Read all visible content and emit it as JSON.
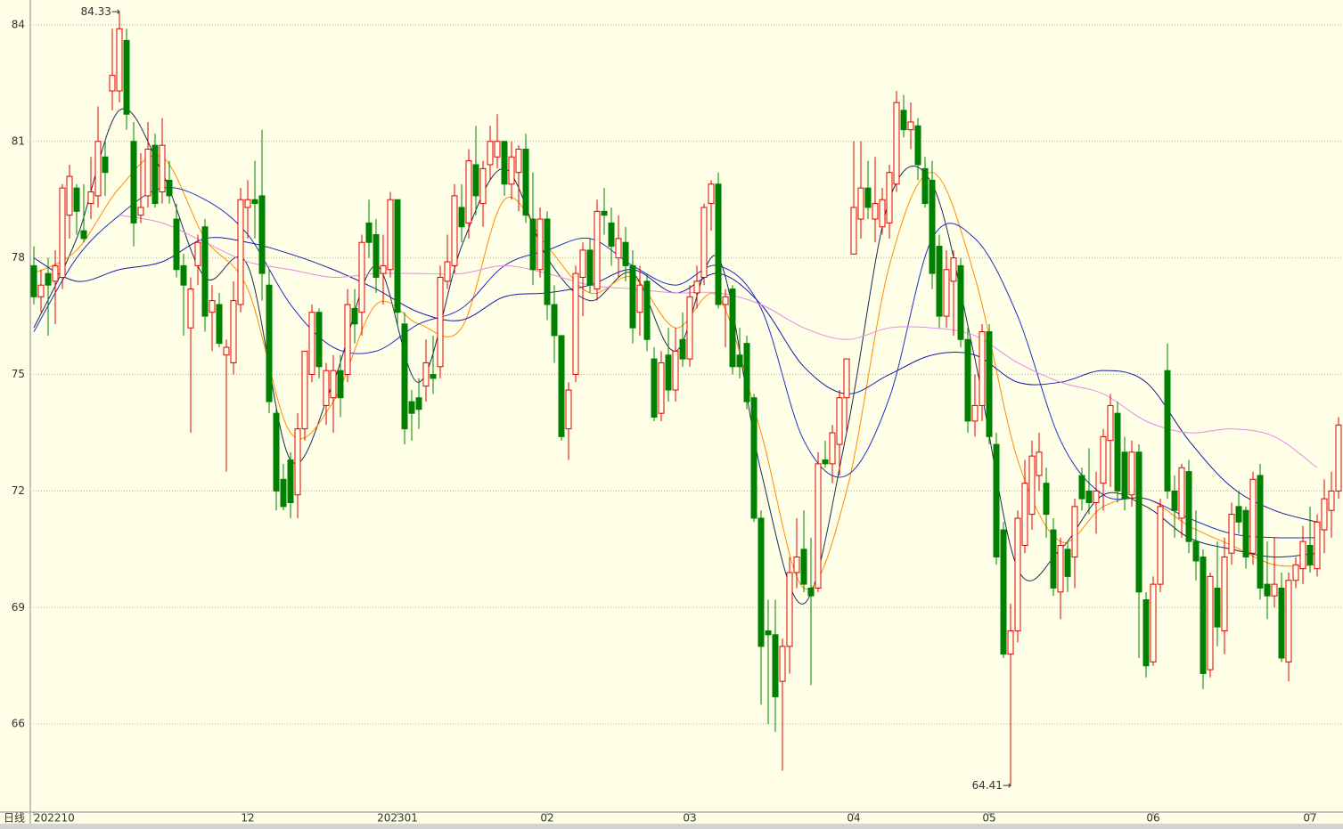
{
  "chart_data": {
    "type": "candlestick",
    "period_label": "日线",
    "up_color": "#e00000",
    "down_color": "#008000",
    "ylim": [
      63.78,
      84.64
    ],
    "yticks": [
      66,
      69,
      72,
      75,
      78,
      81,
      84
    ],
    "grid": true,
    "categories": [
      "202210",
      null,
      null,
      null,
      null,
      null,
      null,
      null,
      null,
      null,
      null,
      null,
      null,
      null,
      null,
      null,
      null,
      null,
      null,
      null,
      null,
      null,
      null,
      null,
      null,
      null,
      null,
      null,
      null,
      null,
      "12",
      null,
      null,
      null,
      null,
      null,
      null,
      null,
      null,
      null,
      null,
      null,
      null,
      null,
      null,
      null,
      null,
      null,
      null,
      null,
      null,
      "202301",
      null,
      null,
      null,
      null,
      null,
      null,
      null,
      null,
      null,
      null,
      null,
      null,
      null,
      null,
      null,
      null,
      null,
      null,
      null,
      null,
      "02",
      null,
      null,
      null,
      null,
      null,
      null,
      null,
      null,
      null,
      null,
      null,
      null,
      null,
      null,
      null,
      null,
      null,
      null,
      null,
      "03",
      null,
      null,
      null,
      null,
      null,
      null,
      null,
      null,
      null,
      null,
      null,
      null,
      null,
      null,
      null,
      null,
      null,
      null,
      null,
      null,
      null,
      null,
      "04",
      null,
      null,
      null,
      null,
      null,
      null,
      null,
      null,
      null,
      null,
      null,
      null,
      null,
      null,
      null,
      null,
      null,
      null,
      "05",
      null,
      null,
      null,
      null,
      null,
      null,
      null,
      null,
      null,
      null,
      null,
      null,
      null,
      null,
      null,
      null,
      null,
      null,
      null,
      null,
      null,
      null,
      "06",
      null,
      null,
      null,
      null,
      null,
      null,
      null,
      null,
      null,
      null,
      null,
      null,
      null,
      null,
      null,
      null,
      null,
      null,
      null,
      null,
      null,
      "07",
      null,
      null,
      null,
      null
    ],
    "candles": [
      [
        77.8,
        78.3,
        76.8,
        77.0
      ],
      [
        77.0,
        77.7,
        76.6,
        77.3
      ],
      [
        77.6,
        78.0,
        76.0,
        77.3
      ],
      [
        77.4,
        78.2,
        76.3,
        77.8
      ],
      [
        77.5,
        79.9,
        77.2,
        79.8
      ],
      [
        79.1,
        80.4,
        78.5,
        80.1
      ],
      [
        79.8,
        79.9,
        78.6,
        79.2
      ],
      [
        78.7,
        79.9,
        78.4,
        78.5
      ],
      [
        79.4,
        80.6,
        79.0,
        79.7
      ],
      [
        79.6,
        81.9,
        79.3,
        81.0
      ],
      [
        80.6,
        81.0,
        79.6,
        80.2
      ],
      [
        82.3,
        83.9,
        81.8,
        82.7
      ],
      [
        82.3,
        84.33,
        82.0,
        83.9
      ],
      [
        83.6,
        83.9,
        81.3,
        81.7
      ],
      [
        81.0,
        81.5,
        78.3,
        78.9
      ],
      [
        79.1,
        80.7,
        78.9,
        79.3
      ],
      [
        79.6,
        81.5,
        79.3,
        80.8
      ],
      [
        80.9,
        81.2,
        79.3,
        79.4
      ],
      [
        79.7,
        81.6,
        79.4,
        80.9
      ],
      [
        80.0,
        80.5,
        79.4,
        79.6
      ],
      [
        79.0,
        79.4,
        77.5,
        77.7
      ],
      [
        77.8,
        78.1,
        76.0,
        77.3
      ],
      [
        76.2,
        77.5,
        73.5,
        77.2
      ],
      [
        77.8,
        78.6,
        77.3,
        78.4
      ],
      [
        78.8,
        79.0,
        76.1,
        76.5
      ],
      [
        76.6,
        77.3,
        75.6,
        76.9
      ],
      [
        76.8,
        77.1,
        75.7,
        75.8
      ],
      [
        75.5,
        75.9,
        72.5,
        75.7
      ],
      [
        75.3,
        77.4,
        75.0,
        76.9
      ],
      [
        76.8,
        79.8,
        76.6,
        79.5
      ],
      [
        79.3,
        80.0,
        78.5,
        79.5
      ],
      [
        79.5,
        80.5,
        78.5,
        79.4
      ],
      [
        79.6,
        81.3,
        76.9,
        77.6
      ],
      [
        77.3,
        77.7,
        74.0,
        74.3
      ],
      [
        74.0,
        74.2,
        71.5,
        72.0
      ],
      [
        72.3,
        72.7,
        71.5,
        71.6
      ],
      [
        72.8,
        73.0,
        71.3,
        71.7
      ],
      [
        71.9,
        74.0,
        71.3,
        73.6
      ],
      [
        73.6,
        75.6,
        73.3,
        75.6
      ],
      [
        75.0,
        76.8,
        74.8,
        76.6
      ],
      [
        76.6,
        76.7,
        74.9,
        75.2
      ],
      [
        74.2,
        75.3,
        73.7,
        75.1
      ],
      [
        74.4,
        75.5,
        73.5,
        75.1
      ],
      [
        75.1,
        75.5,
        73.9,
        74.4
      ],
      [
        75.0,
        77.2,
        74.8,
        76.8
      ],
      [
        76.7,
        77.2,
        75.8,
        76.3
      ],
      [
        76.6,
        78.6,
        76.0,
        78.4
      ],
      [
        78.9,
        79.5,
        78.0,
        78.4
      ],
      [
        78.6,
        79.0,
        77.1,
        77.5
      ],
      [
        77.6,
        78.6,
        76.8,
        77.8
      ],
      [
        77.7,
        79.7,
        77.5,
        79.5
      ],
      [
        79.5,
        79.5,
        76.3,
        76.6
      ],
      [
        76.3,
        76.6,
        73.2,
        73.6
      ],
      [
        74.3,
        74.6,
        73.3,
        74.0
      ],
      [
        74.4,
        74.9,
        73.6,
        74.1
      ],
      [
        74.7,
        75.9,
        74.3,
        75.3
      ],
      [
        75.0,
        76.0,
        74.5,
        74.9
      ],
      [
        75.2,
        77.8,
        74.9,
        77.5
      ],
      [
        77.4,
        78.6,
        77.2,
        77.9
      ],
      [
        77.8,
        79.9,
        77.6,
        79.6
      ],
      [
        79.3,
        79.9,
        78.4,
        78.8
      ],
      [
        78.9,
        80.8,
        78.5,
        80.5
      ],
      [
        80.4,
        81.4,
        79.1,
        79.6
      ],
      [
        79.4,
        80.5,
        78.8,
        80.3
      ],
      [
        80.4,
        81.4,
        80.0,
        81.0
      ],
      [
        80.6,
        81.7,
        80.3,
        81.0
      ],
      [
        81.0,
        81.0,
        79.6,
        79.9
      ],
      [
        79.9,
        81.0,
        79.5,
        80.6
      ],
      [
        80.2,
        80.9,
        79.2,
        80.8
      ],
      [
        80.8,
        81.2,
        78.9,
        79.1
      ],
      [
        79.0,
        80.2,
        77.3,
        77.7
      ],
      [
        77.7,
        79.3,
        77.5,
        79.0
      ],
      [
        79.0,
        79.2,
        76.4,
        76.8
      ],
      [
        76.8,
        77.3,
        75.3,
        76.0
      ],
      [
        76.0,
        76.0,
        73.3,
        73.4
      ],
      [
        73.6,
        74.8,
        72.8,
        74.6
      ],
      [
        75.0,
        77.8,
        74.8,
        77.6
      ],
      [
        77.5,
        78.4,
        76.5,
        78.2
      ],
      [
        78.2,
        78.5,
        77.1,
        77.3
      ],
      [
        77.2,
        79.5,
        76.9,
        79.2
      ],
      [
        79.2,
        79.8,
        78.6,
        79.1
      ],
      [
        78.9,
        79.3,
        77.8,
        78.3
      ],
      [
        78.0,
        79.1,
        77.5,
        78.5
      ],
      [
        78.4,
        78.8,
        77.4,
        77.8
      ],
      [
        77.8,
        78.2,
        75.8,
        76.2
      ],
      [
        76.6,
        77.8,
        76.0,
        77.3
      ],
      [
        77.4,
        77.6,
        75.6,
        75.9
      ],
      [
        75.4,
        75.7,
        73.8,
        73.9
      ],
      [
        74.0,
        75.6,
        73.8,
        75.3
      ],
      [
        75.5,
        76.2,
        74.3,
        74.6
      ],
      [
        74.6,
        76.2,
        74.3,
        75.6
      ],
      [
        75.9,
        76.6,
        75.2,
        75.4
      ],
      [
        75.4,
        77.3,
        75.2,
        77.0
      ],
      [
        77.1,
        77.8,
        76.7,
        77.4
      ],
      [
        77.5,
        79.4,
        77.3,
        79.3
      ],
      [
        79.4,
        80.0,
        78.7,
        79.9
      ],
      [
        79.9,
        80.2,
        76.7,
        76.8
      ],
      [
        76.8,
        77.2,
        75.7,
        77.0
      ],
      [
        77.2,
        77.3,
        75.0,
        75.2
      ],
      [
        75.5,
        76.2,
        74.9,
        75.2
      ],
      [
        75.8,
        76.0,
        74.1,
        74.3
      ],
      [
        74.4,
        74.5,
        71.2,
        71.3
      ],
      [
        71.3,
        71.5,
        66.5,
        68.0
      ],
      [
        68.4,
        69.2,
        66.0,
        68.3
      ],
      [
        68.3,
        69.2,
        65.8,
        66.7
      ],
      [
        67.1,
        68.2,
        64.8,
        68.0
      ],
      [
        68.0,
        70.3,
        67.3,
        69.9
      ],
      [
        69.9,
        71.3,
        69.5,
        70.3
      ],
      [
        70.5,
        71.5,
        69.4,
        69.6
      ],
      [
        69.5,
        70.8,
        67.0,
        69.3
      ],
      [
        69.5,
        73.0,
        69.4,
        72.7
      ],
      [
        72.8,
        73.3,
        72.6,
        72.7
      ],
      [
        72.7,
        73.7,
        72.2,
        73.5
      ],
      [
        73.2,
        74.6,
        72.4,
        74.4
      ],
      [
        74.4,
        75.4,
        73.5,
        75.4
      ],
      [
        78.1,
        81.0,
        78.1,
        79.3
      ],
      [
        79.0,
        81.0,
        78.5,
        79.8
      ],
      [
        79.8,
        80.5,
        79.0,
        79.3
      ],
      [
        79.0,
        80.6,
        78.4,
        79.4
      ],
      [
        78.8,
        79.8,
        78.6,
        79.5
      ],
      [
        78.9,
        80.4,
        78.5,
        80.2
      ],
      [
        79.9,
        82.3,
        79.7,
        82.0
      ],
      [
        81.8,
        82.2,
        81.1,
        81.3
      ],
      [
        81.3,
        82.0,
        80.8,
        81.5
      ],
      [
        81.4,
        81.6,
        80.0,
        80.4
      ],
      [
        80.3,
        80.6,
        79.3,
        79.4
      ],
      [
        80.0,
        80.5,
        77.2,
        77.6
      ],
      [
        78.3,
        78.6,
        76.2,
        76.5
      ],
      [
        76.5,
        78.2,
        76.2,
        77.7
      ],
      [
        77.4,
        78.2,
        76.0,
        78.0
      ],
      [
        77.8,
        78.0,
        75.7,
        75.9
      ],
      [
        75.9,
        76.2,
        73.5,
        73.8
      ],
      [
        73.8,
        75.0,
        73.4,
        74.2
      ],
      [
        74.2,
        76.3,
        73.8,
        76.1
      ],
      [
        76.1,
        76.3,
        73.2,
        73.4
      ],
      [
        73.2,
        73.5,
        70.1,
        70.3
      ],
      [
        71.0,
        71.2,
        67.7,
        67.8
      ],
      [
        67.8,
        69.1,
        64.41,
        68.4
      ],
      [
        68.4,
        71.5,
        68.1,
        71.3
      ],
      [
        70.6,
        72.8,
        70.4,
        72.2
      ],
      [
        71.4,
        73.3,
        71.0,
        72.9
      ],
      [
        72.4,
        73.5,
        72.0,
        73.0
      ],
      [
        72.2,
        72.6,
        70.8,
        71.4
      ],
      [
        71.0,
        71.3,
        69.3,
        69.5
      ],
      [
        69.4,
        70.8,
        68.7,
        70.6
      ],
      [
        70.5,
        70.7,
        69.4,
        69.8
      ],
      [
        70.3,
        71.8,
        69.5,
        71.6
      ],
      [
        72.4,
        72.6,
        71.5,
        71.8
      ],
      [
        72.0,
        73.1,
        71.4,
        71.7
      ],
      [
        71.7,
        72.5,
        70.9,
        72.0
      ],
      [
        72.2,
        73.6,
        71.5,
        73.4
      ],
      [
        73.3,
        74.5,
        72.1,
        74.2
      ],
      [
        74.0,
        74.3,
        71.7,
        72.0
      ],
      [
        73.0,
        73.4,
        71.5,
        71.8
      ],
      [
        71.9,
        73.3,
        71.6,
        73.0
      ],
      [
        73.0,
        73.2,
        67.7,
        69.4
      ],
      [
        69.2,
        69.4,
        67.2,
        67.5
      ],
      [
        67.6,
        69.8,
        67.5,
        69.6
      ],
      [
        69.6,
        71.8,
        69.4,
        71.6
      ],
      [
        75.1,
        75.8,
        71.8,
        72.0
      ],
      [
        72.0,
        72.4,
        70.8,
        71.5
      ],
      [
        71.3,
        72.7,
        70.8,
        72.6
      ],
      [
        72.5,
        72.8,
        70.4,
        70.7
      ],
      [
        70.7,
        71.5,
        69.7,
        70.2
      ],
      [
        70.3,
        70.5,
        66.9,
        67.3
      ],
      [
        67.4,
        69.9,
        67.2,
        69.8
      ],
      [
        69.5,
        70.7,
        68.0,
        68.5
      ],
      [
        68.4,
        70.8,
        67.8,
        70.3
      ],
      [
        70.4,
        71.7,
        70.1,
        71.4
      ],
      [
        71.6,
        72.0,
        70.9,
        71.2
      ],
      [
        71.5,
        71.6,
        70.0,
        70.3
      ],
      [
        70.4,
        72.5,
        70.1,
        72.3
      ],
      [
        72.4,
        72.7,
        69.2,
        69.5
      ],
      [
        69.6,
        70.7,
        68.7,
        69.3
      ],
      [
        69.3,
        70.8,
        69.0,
        69.6
      ],
      [
        69.5,
        69.9,
        67.6,
        67.7
      ],
      [
        67.6,
        69.9,
        67.1,
        69.7
      ],
      [
        69.7,
        70.3,
        69.5,
        70.1
      ],
      [
        70.0,
        71.1,
        69.6,
        70.7
      ],
      [
        70.6,
        71.6,
        69.9,
        70.1
      ],
      [
        70.0,
        71.4,
        69.8,
        71.2
      ],
      [
        71.0,
        72.3,
        70.4,
        71.8
      ],
      [
        71.5,
        72.5,
        70.8,
        72.0
      ],
      [
        72.0,
        73.9,
        71.8,
        73.7
      ]
    ],
    "ma_x": [
      0,
      6,
      12,
      18,
      24,
      30,
      36,
      42,
      48,
      54,
      60,
      66,
      72,
      78,
      84,
      90,
      96,
      102,
      108,
      114,
      120,
      126,
      132,
      138,
      144,
      150,
      156,
      162,
      168,
      174,
      180
    ],
    "ma_series": [
      {
        "color": "#1c2a5c",
        "values": [
          76.2,
          78.5,
          81.8,
          80.2,
          77.5,
          77.8,
          72.8,
          74.8,
          77.8,
          74.8,
          78.3,
          80.3,
          78.0,
          76.9,
          77.6,
          75.6,
          78.0,
          72.5,
          69.1,
          73.5,
          79.5,
          79.9,
          75.4,
          70.0,
          70.5,
          71.9,
          71.6,
          70.8,
          70.5,
          70.3,
          70.4
        ]
      },
      {
        "color": "#ff8c00",
        "values": [
          77.6,
          78.2,
          79.8,
          80.6,
          78.5,
          77.2,
          73.5,
          74.3,
          76.8,
          76.3,
          76.2,
          79.5,
          78.3,
          77.1,
          77.5,
          76.2,
          77.0,
          73.5,
          69.5,
          72.0,
          77.8,
          80.2,
          77.5,
          72.8,
          70.7,
          71.6,
          71.8,
          71.1,
          70.6,
          70.1,
          70.1
        ]
      },
      {
        "color": "#2030c0",
        "values": [
          76.1,
          78.0,
          79.1,
          79.8,
          79.5,
          78.6,
          76.8,
          75.7,
          75.6,
          76.3,
          76.7,
          77.8,
          78.2,
          78.5,
          77.8,
          77.3,
          77.8,
          76.7,
          73.3,
          72.4,
          74.4,
          78.5,
          78.5,
          76.5,
          73.3,
          71.9,
          71.8,
          71.3,
          70.9,
          70.8,
          70.8
        ]
      },
      {
        "color": "#1a1aa8",
        "values": [
          78.0,
          77.4,
          77.7,
          77.9,
          78.5,
          78.4,
          78.1,
          77.7,
          77.2,
          76.6,
          76.4,
          77.0,
          77.1,
          77.3,
          77.7,
          77.1,
          77.6,
          76.8,
          75.2,
          74.5,
          75.0,
          75.5,
          75.5,
          74.8,
          74.8,
          75.1,
          74.8,
          73.3,
          72.1,
          71.5,
          71.2
        ]
      },
      {
        "color": "#e58be5",
        "values": [
          null,
          null,
          79.1,
          78.9,
          78.4,
          77.9,
          77.7,
          77.5,
          77.6,
          77.6,
          77.6,
          77.8,
          77.6,
          77.3,
          77.2,
          77.1,
          77.1,
          76.8,
          76.2,
          75.9,
          76.2,
          76.2,
          76.0,
          75.3,
          74.8,
          74.5,
          73.8,
          73.5,
          73.6,
          73.4,
          72.6
        ]
      }
    ],
    "annotations": [
      {
        "label": "84.33→",
        "value": 84.33
      },
      {
        "label": "64.41→",
        "value": 64.41
      }
    ]
  }
}
